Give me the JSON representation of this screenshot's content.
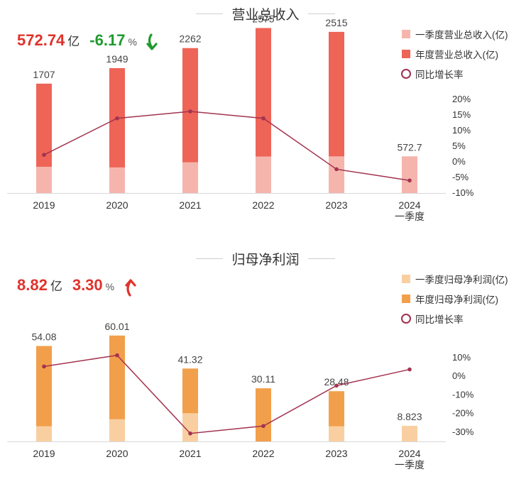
{
  "chart_data": [
    {
      "type": "bar",
      "title": "营业总收入",
      "headline": {
        "value": "572.74",
        "unit": "亿",
        "change": "-6.17",
        "change_unit": "%",
        "direction": "down"
      },
      "categories": [
        "2019",
        "2020",
        "2021",
        "2022",
        "2023",
        "2024\n一季度"
      ],
      "series": [
        {
          "name": "一季度营业总收入(亿)",
          "kind": "bar",
          "values": [
            410,
            400,
            480,
            570,
            572.7,
            572.7
          ]
        },
        {
          "name": "年度营业总收入(亿)",
          "kind": "bar",
          "values": [
            1707,
            1949,
            2262,
            2575,
            2515,
            null
          ]
        },
        {
          "name": "同比增长率",
          "kind": "line",
          "values": [
            2.0,
            13.7,
            15.9,
            13.7,
            -2.6,
            -6.2
          ]
        }
      ],
      "bar_labels": [
        "1707",
        "1949",
        "2262",
        "2575",
        "2515",
        "572.7"
      ],
      "y_right": {
        "ticks": [
          "20%",
          "15%",
          "10%",
          "5%",
          "0%",
          "-5%",
          "-10%"
        ],
        "range": [
          -10,
          20
        ]
      },
      "colors": {
        "quarter": "#f5b5ad",
        "annual": "#ee6457",
        "line": "#a3334f"
      },
      "legend_position": "top-right"
    },
    {
      "type": "bar",
      "title": "归母净利润",
      "headline": {
        "value": "8.82",
        "unit": "亿",
        "change": "3.30",
        "change_unit": "%",
        "direction": "up"
      },
      "categories": [
        "2019",
        "2020",
        "2021",
        "2022",
        "2023",
        "2024\n一季度"
      ],
      "series": [
        {
          "name": "一季度归母净利润(亿)",
          "kind": "bar",
          "values": [
            8.6,
            12.6,
            16.0,
            0,
            8.6,
            8.823
          ]
        },
        {
          "name": "年度归母净利润(亿)",
          "kind": "bar",
          "values": [
            54.08,
            60.01,
            41.32,
            30.11,
            28.48,
            null
          ]
        },
        {
          "name": "同比增长率",
          "kind": "line",
          "values": [
            4.9,
            10.9,
            -31.1,
            -27.1,
            -5.4,
            3.3
          ]
        }
      ],
      "bar_labels": [
        "54.08",
        "60.01",
        "41.32",
        "30.11",
        "28.48",
        "8.823"
      ],
      "y_right": {
        "ticks": [
          "10%",
          "0%",
          "-10%",
          "-20%",
          "-30%"
        ],
        "range": [
          -35,
          10
        ]
      },
      "colors": {
        "quarter": "#f9cfa1",
        "annual": "#f29f4c",
        "line": "#a3334f"
      },
      "legend_position": "top-right"
    }
  ]
}
